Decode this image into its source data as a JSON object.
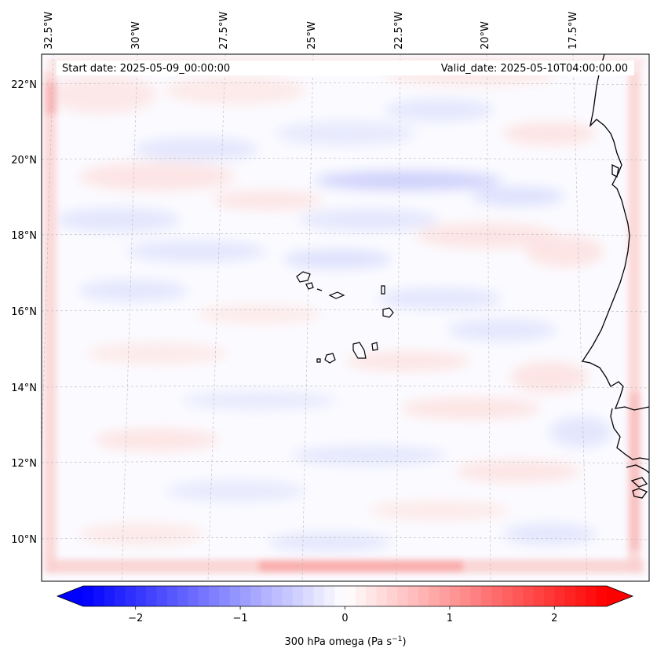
{
  "map": {
    "start_date": "Start date: 2025-05-09_00:00:00",
    "valid_date": "Valid_date: 2025-05-10T04:00:00.00",
    "lon_labels": [
      "32.5°W",
      "30°W",
      "27.5°W",
      "25°W",
      "22.5°W",
      "20°W",
      "17.5°W"
    ],
    "lat_labels": [
      "22°N",
      "20°N",
      "18°N",
      "16°N",
      "14°N",
      "12°N",
      "10°N"
    ],
    "field_colors": {
      "neutral": "#fbfbff",
      "weak_positive": "#fde4e4",
      "moderate_positive": "#fbc4c4",
      "weak_negative": "#e4e6fd",
      "moderate_negative": "#cdd0fb"
    },
    "coastline_color": "#000000",
    "grid_color": "#b8b8b8"
  },
  "colorbar": {
    "label_prefix": "300 hPa omega (Pa s",
    "label_exp": "−1",
    "label_suffix": ")",
    "ticks": [
      {
        "value": -2,
        "label": "−2"
      },
      {
        "value": -1,
        "label": "−1"
      },
      {
        "value": 0,
        "label": "0"
      },
      {
        "value": 1,
        "label": "1"
      },
      {
        "value": 2,
        "label": "2"
      }
    ],
    "vmin": -2.5,
    "vmax": 2.5,
    "color_min": "#0000ff",
    "color_mid": "#ffffff",
    "color_max": "#ff0000",
    "levels": 50
  }
}
